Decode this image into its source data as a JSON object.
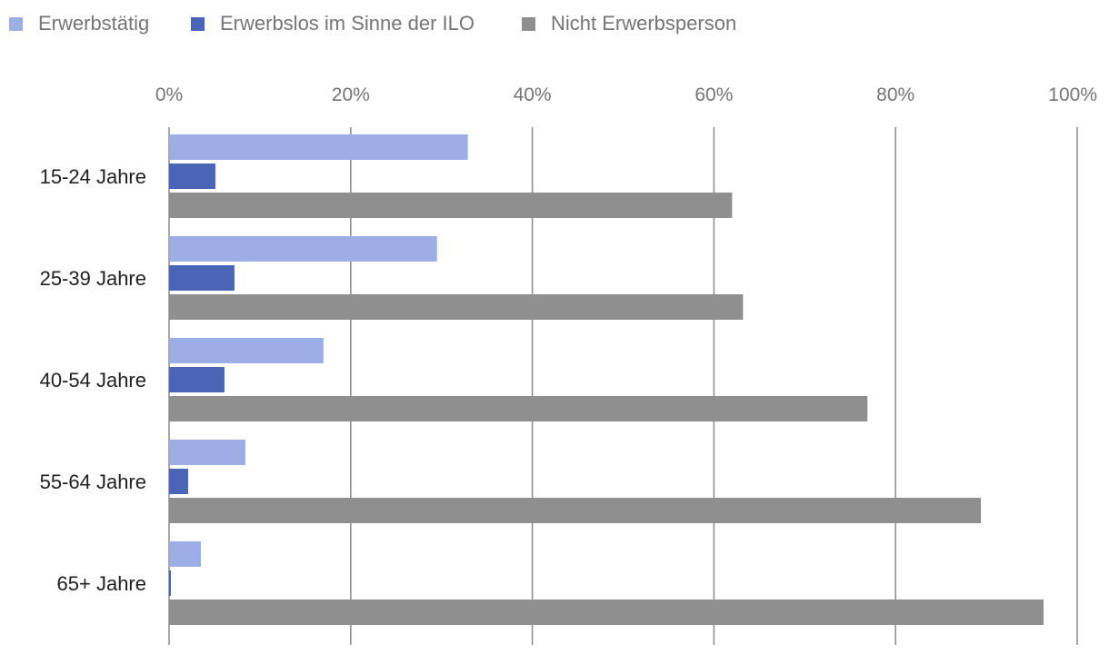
{
  "chart_data": {
    "type": "bar",
    "orientation": "horizontal",
    "categories": [
      "15-24 Jahre",
      "25-39 Jahre",
      "40-54 Jahre",
      "55-64 Jahre",
      "65+ Jahre"
    ],
    "series": [
      {
        "name": "Erwerbstätig",
        "color": "#9daee6",
        "values": [
          32.9,
          29.5,
          17.0,
          8.4,
          3.5
        ]
      },
      {
        "name": "Erwerbslos im Sinne der ILO",
        "color": "#4a64b6",
        "values": [
          5.1,
          7.2,
          6.1,
          2.1,
          0.2
        ]
      },
      {
        "name": "Nicht Erwerbsperson",
        "color": "#8f8f8f",
        "values": [
          62.0,
          63.2,
          76.9,
          89.4,
          96.3
        ]
      }
    ],
    "xticks": [
      "0%",
      "20%",
      "40%",
      "60%",
      "80%",
      "100%"
    ],
    "xlim": [
      0,
      100
    ],
    "xlabel": "",
    "ylabel": "",
    "grid": true,
    "legend_position": "top-left"
  }
}
